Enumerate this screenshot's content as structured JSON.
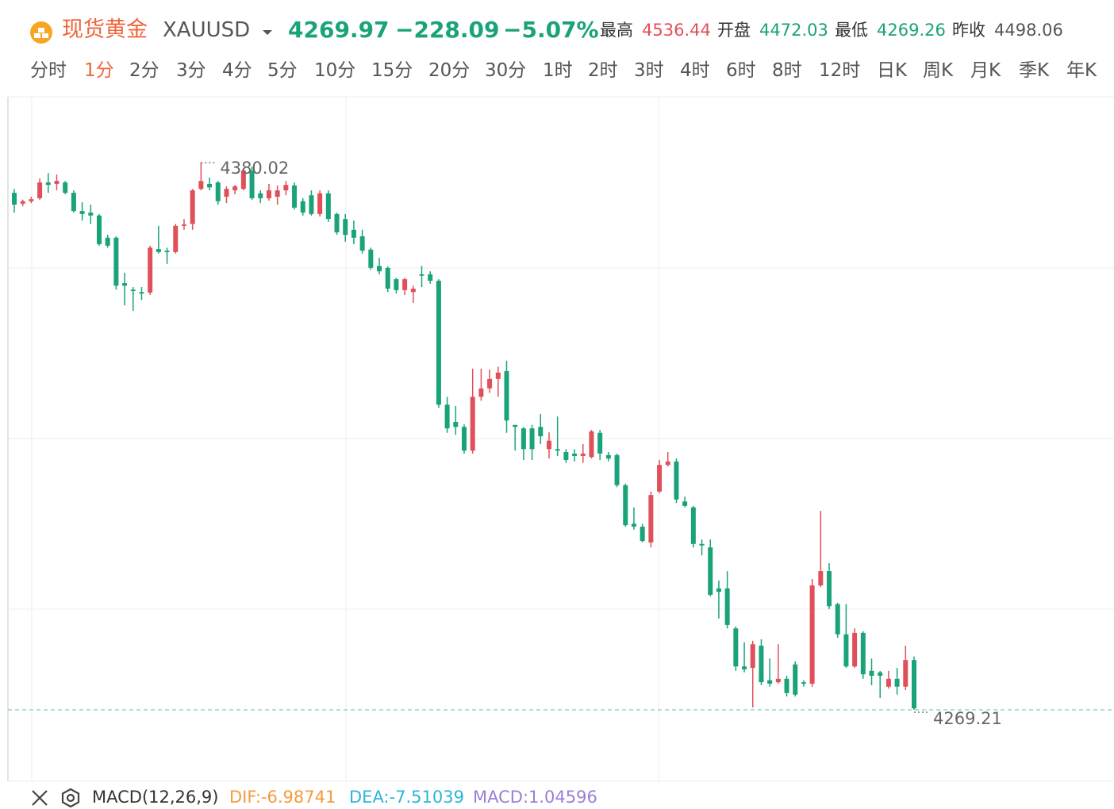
{
  "header": {
    "name": "现货黄金",
    "symbol": "XAUUSD",
    "price": "4269.97",
    "change": "−228.09",
    "change_pct": "−5.07%",
    "stats": [
      {
        "label": "最高",
        "value": "4536.44"
      },
      {
        "label": "开盘",
        "value": "4472.03"
      },
      {
        "label": "最低",
        "value": "4269.26"
      },
      {
        "label": "昨收",
        "value": "4498.06"
      }
    ]
  },
  "periods": [
    "分时",
    "1分",
    "2分",
    "3分",
    "4分",
    "5分",
    "10分",
    "15分",
    "20分",
    "30分",
    "1时",
    "2时",
    "3时",
    "4时",
    "6时",
    "8时",
    "12时",
    "日K",
    "周K",
    "月K",
    "季K",
    "年K"
  ],
  "active_period": "1分",
  "indicator": {
    "name": "MACD(12,26,9)",
    "dif": "DIF:-6.98741",
    "dea": "DEA:-7.51039",
    "macd": "MACD:1.04596"
  },
  "chart_data": {
    "type": "candlestick",
    "up_color": "#e0505a",
    "down_color": "#1aa37a",
    "ylim": [
      4254.75,
      4393.35
    ],
    "ygrid": [
      4289.6,
      4324.13,
      4358.66
    ],
    "max_label": 4380.02,
    "min_label": 4269.21,
    "ohlc": [
      [
        4373.9,
        4374.7,
        4369.9,
        4371.5
      ],
      [
        4371.7,
        4372.5,
        4371.2,
        4372.2
      ],
      [
        4372.2,
        4373.1,
        4371.8,
        4372.6
      ],
      [
        4372.8,
        4376.8,
        4372.5,
        4376.0
      ],
      [
        4376.0,
        4377.9,
        4373.9,
        4375.5
      ],
      [
        4375.7,
        4377.6,
        4374.4,
        4376.3
      ],
      [
        4376.0,
        4376.3,
        4373.6,
        4373.9
      ],
      [
        4373.9,
        4374.4,
        4369.9,
        4370.2
      ],
      [
        4370.2,
        4372.0,
        4368.3,
        4369.6
      ],
      [
        4369.9,
        4371.5,
        4367.6,
        4369.3
      ],
      [
        4369.3,
        4369.6,
        4363.2,
        4363.5
      ],
      [
        4364.8,
        4365.4,
        4362.8,
        4363.2
      ],
      [
        4364.8,
        4365.1,
        4354.3,
        4355.1
      ],
      [
        4355.6,
        4357.7,
        4351.1,
        4355.1
      ],
      [
        4354.3,
        4354.8,
        4350.0,
        4354.0
      ],
      [
        4353.8,
        4354.8,
        4352.2,
        4353.5
      ],
      [
        4353.7,
        4363.2,
        4353.2,
        4362.8
      ],
      [
        4362.5,
        4367.2,
        4361.6,
        4361.9
      ],
      [
        4362.2,
        4362.8,
        4359.5,
        4361.9
      ],
      [
        4361.9,
        4367.6,
        4361.6,
        4367.2
      ],
      [
        4367.2,
        4368.6,
        4366.4,
        4367.5
      ],
      [
        4367.6,
        4374.7,
        4366.4,
        4374.4
      ],
      [
        4374.7,
        4380.02,
        4374.4,
        4376.3
      ],
      [
        4375.7,
        4377.0,
        4374.4,
        4375.0
      ],
      [
        4376.0,
        4376.3,
        4371.5,
        4372.2
      ],
      [
        4373.1,
        4375.2,
        4371.8,
        4374.7
      ],
      [
        4374.4,
        4375.5,
        4373.6,
        4375.2
      ],
      [
        4374.7,
        4378.9,
        4374.4,
        4378.4
      ],
      [
        4378.4,
        4379.2,
        4372.5,
        4372.8
      ],
      [
        4373.8,
        4374.4,
        4371.8,
        4372.8
      ],
      [
        4372.8,
        4375.7,
        4372.3,
        4374.4
      ],
      [
        4373.1,
        4375.4,
        4371.5,
        4374.4
      ],
      [
        4374.4,
        4376.3,
        4373.4,
        4375.5
      ],
      [
        4375.4,
        4376.0,
        4370.5,
        4370.9
      ],
      [
        4372.2,
        4372.8,
        4369.3,
        4369.9
      ],
      [
        4373.4,
        4374.4,
        4369.3,
        4369.6
      ],
      [
        4369.6,
        4374.4,
        4369.1,
        4373.8
      ],
      [
        4373.8,
        4374.4,
        4368.0,
        4368.6
      ],
      [
        4369.6,
        4369.9,
        4365.4,
        4365.9
      ],
      [
        4368.6,
        4369.6,
        4364.0,
        4365.4
      ],
      [
        4366.4,
        4368.3,
        4363.5,
        4364.8
      ],
      [
        4365.1,
        4366.4,
        4361.6,
        4362.2
      ],
      [
        4362.4,
        4362.8,
        4358.3,
        4358.7
      ],
      [
        4359.1,
        4360.7,
        4357.4,
        4358.0
      ],
      [
        4358.7,
        4359.0,
        4353.8,
        4354.5
      ],
      [
        4356.4,
        4356.7,
        4353.5,
        4354.2
      ],
      [
        4354.2,
        4356.7,
        4353.2,
        4356.4
      ],
      [
        4353.8,
        4355.1,
        4351.6,
        4354.5
      ],
      [
        4357.4,
        4359.1,
        4354.8,
        4357.1
      ],
      [
        4357.4,
        4358.0,
        4355.5,
        4356.1
      ],
      [
        4356.1,
        4356.4,
        4330.4,
        4331.0
      ],
      [
        4331.0,
        4332.6,
        4325.3,
        4326.2
      ],
      [
        4327.5,
        4330.7,
        4324.9,
        4326.5
      ],
      [
        4326.5,
        4327.0,
        4321.1,
        4321.7
      ],
      [
        4321.7,
        4338.3,
        4321.1,
        4332.6
      ],
      [
        4332.6,
        4338.3,
        4331.8,
        4334.3
      ],
      [
        4334.3,
        4338.1,
        4333.4,
        4336.2
      ],
      [
        4336.2,
        4338.7,
        4332.6,
        4337.5
      ],
      [
        4337.8,
        4339.9,
        4325.3,
        4327.8
      ],
      [
        4326.9,
        4326.9,
        4321.7,
        4326.5
      ],
      [
        4326.2,
        4326.5,
        4319.8,
        4322.0
      ],
      [
        4326.2,
        4326.9,
        4319.8,
        4322.0
      ],
      [
        4326.5,
        4329.1,
        4323.0,
        4324.6
      ],
      [
        4322.0,
        4325.4,
        4320.1,
        4323.7
      ],
      [
        4322.0,
        4328.6,
        4320.6,
        4321.7
      ],
      [
        4321.4,
        4322.0,
        4319.2,
        4319.8
      ],
      [
        4321.1,
        4322.0,
        4319.5,
        4320.6
      ],
      [
        4320.6,
        4323.0,
        4319.2,
        4321.1
      ],
      [
        4320.4,
        4325.9,
        4320.1,
        4325.6
      ],
      [
        4325.3,
        4325.9,
        4319.8,
        4321.1
      ],
      [
        4320.8,
        4321.4,
        4319.5,
        4320.1
      ],
      [
        4320.8,
        4321.1,
        4314.3,
        4314.7
      ],
      [
        4314.7,
        4315.0,
        4306.3,
        4306.6
      ],
      [
        4306.9,
        4310.2,
        4305.7,
        4306.3
      ],
      [
        4306.3,
        4306.9,
        4303.1,
        4303.4
      ],
      [
        4303.1,
        4313.4,
        4302.1,
        4312.7
      ],
      [
        4313.4,
        4319.8,
        4313.1,
        4318.8
      ],
      [
        4318.8,
        4321.4,
        4318.5,
        4319.5
      ],
      [
        4319.5,
        4320.1,
        4311.1,
        4311.8
      ],
      [
        4311.4,
        4312.4,
        4310.2,
        4310.5
      ],
      [
        4310.2,
        4310.5,
        4302.1,
        4302.8
      ],
      [
        4302.8,
        4303.7,
        4300.5,
        4302.5
      ],
      [
        4302.1,
        4303.7,
        4292.2,
        4292.5
      ],
      [
        4293.8,
        4295.4,
        4287.7,
        4293.1
      ],
      [
        4293.8,
        4297.3,
        4285.7,
        4286.4
      ],
      [
        4285.7,
        4286.1,
        4277.1,
        4278.0
      ],
      [
        4278.0,
        4282.9,
        4276.8,
        4277.4
      ],
      [
        4277.7,
        4283.2,
        4269.7,
        4282.5
      ],
      [
        4282.2,
        4283.5,
        4274.2,
        4274.8
      ],
      [
        4275.2,
        4279.6,
        4273.9,
        4274.5
      ],
      [
        4274.8,
        4282.5,
        4274.5,
        4275.5
      ],
      [
        4275.5,
        4276.1,
        4271.9,
        4272.6
      ],
      [
        4278.4,
        4279.0,
        4271.9,
        4272.3
      ],
      [
        4274.8,
        4275.2,
        4273.9,
        4274.5
      ],
      [
        4274.5,
        4295.7,
        4273.9,
        4294.4
      ],
      [
        4294.4,
        4309.5,
        4294.1,
        4297.3
      ],
      [
        4297.3,
        4298.9,
        4289.6,
        4290.2
      ],
      [
        4290.6,
        4290.9,
        4283.8,
        4284.5
      ],
      [
        4284.5,
        4290.6,
        4277.7,
        4278.0
      ],
      [
        4278.0,
        4285.7,
        4277.7,
        4284.8
      ],
      [
        4284.8,
        4285.1,
        4275.5,
        4276.4
      ],
      [
        4277.1,
        4279.6,
        4274.2,
        4276.1
      ],
      [
        4276.8,
        4277.1,
        4271.6,
        4276.1
      ],
      [
        4273.9,
        4277.1,
        4273.5,
        4275.5
      ],
      [
        4275.5,
        4277.7,
        4272.3,
        4273.9
      ],
      [
        4273.9,
        4282.2,
        4273.2,
        4279.3
      ],
      [
        4279.3,
        4280.0,
        4269.21,
        4269.5
      ]
    ]
  }
}
